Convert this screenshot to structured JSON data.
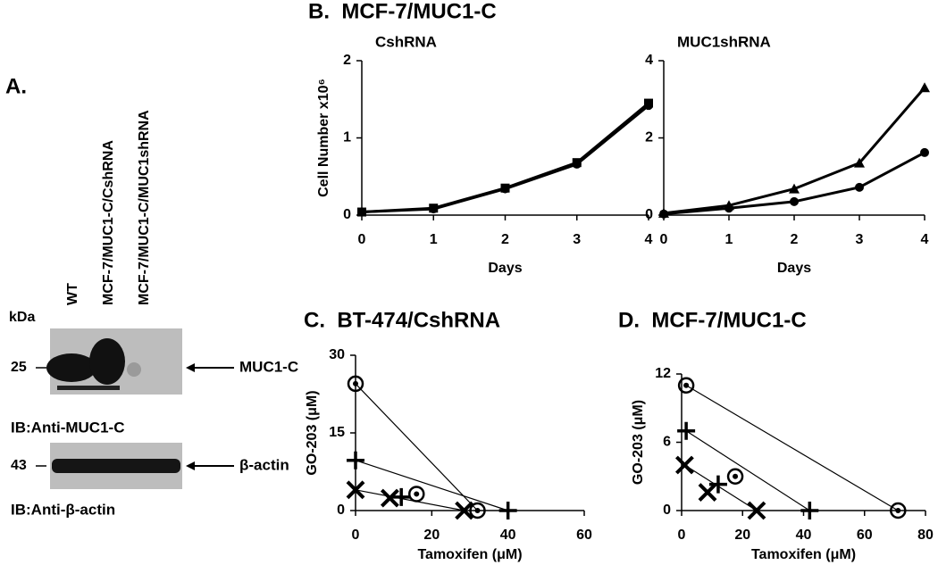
{
  "panel_a": {
    "label": "A.",
    "unit": "kDa",
    "lanes": [
      "WT",
      "MCF-7/MUC1-C/CshRNA",
      "MCF-7/MUC1-C/MUC1shRNA"
    ],
    "blots": [
      {
        "size": "25",
        "band": "MUC1-C",
        "antibody": "IB:Anti-MUC1-C"
      },
      {
        "size": "43",
        "band": "β-actin",
        "antibody": "IB:Anti-β-actin"
      }
    ]
  },
  "panel_b": {
    "title": "B.  MCF-7/MUC1-C"
  },
  "chart_data": [
    {
      "type": "line",
      "title": "CshRNA",
      "x_label": "Days",
      "y_label": "Cell Number x10⁶",
      "x": [
        0,
        1,
        2,
        3,
        4
      ],
      "xlim": [
        0,
        4
      ],
      "xticks": [
        0,
        1,
        2,
        3,
        4
      ],
      "ylim": [
        0,
        2
      ],
      "yticks": [
        0,
        1,
        2
      ],
      "series": [
        {
          "color": "#000000",
          "marker": "square",
          "values": [
            0.04,
            0.09,
            0.35,
            0.68,
            1.45
          ]
        },
        {
          "color": "#000000",
          "marker": "dot",
          "values": [
            0.04,
            0.08,
            0.34,
            0.66,
            1.42
          ]
        }
      ]
    },
    {
      "type": "line",
      "title": "MUC1shRNA",
      "x_label": "Days",
      "x": [
        0,
        1,
        2,
        3,
        4
      ],
      "xlim": [
        0,
        4
      ],
      "xticks": [
        0,
        1,
        2,
        3,
        4
      ],
      "ylim": [
        0,
        4
      ],
      "yticks": [
        0,
        2,
        4
      ],
      "series": [
        {
          "color": "#000000",
          "marker": "triangle",
          "values": [
            0.05,
            0.25,
            0.68,
            1.35,
            3.3
          ]
        },
        {
          "color": "#000000",
          "marker": "dot",
          "values": [
            0.03,
            0.18,
            0.35,
            0.72,
            1.62
          ]
        }
      ]
    },
    {
      "type": "scatter",
      "title": "C.  BT-474/CshRNA",
      "x_label": "Tamoxifen (μM)",
      "y_label": "GO-203 (μM)",
      "xlim": [
        0,
        60
      ],
      "xticks": [
        0,
        20,
        40,
        60
      ],
      "ylim": [
        0,
        30
      ],
      "yticks": [
        0,
        15,
        30
      ],
      "series": [
        {
          "color": "#000000",
          "marker": "ring",
          "x": [
            0,
            32,
            16
          ],
          "values": [
            24.5,
            0,
            3.2
          ]
        },
        {
          "color": "#000000",
          "marker": "plus",
          "x": [
            0,
            40,
            12
          ],
          "values": [
            9.7,
            0,
            2.6
          ]
        },
        {
          "color": "#000000",
          "marker": "cross",
          "x": [
            0,
            28.5,
            9
          ],
          "values": [
            4,
            0,
            2.4
          ]
        }
      ]
    },
    {
      "type": "scatter",
      "title": "D.  MCF-7/MUC1-C",
      "x_label": "Tamoxifen (μM)",
      "y_label": "GO-203 (μM)",
      "xlim": [
        0,
        80
      ],
      "xticks": [
        0,
        20,
        40,
        60,
        80
      ],
      "ylim": [
        0,
        12
      ],
      "yticks": [
        0,
        6,
        12
      ],
      "series": [
        {
          "color": "#000000",
          "marker": "ring",
          "x": [
            1.5,
            71,
            17.6
          ],
          "values": [
            11,
            0,
            3
          ]
        },
        {
          "color": "#000000",
          "marker": "plus",
          "x": [
            1.5,
            42,
            12
          ],
          "values": [
            7,
            0,
            2.3
          ]
        },
        {
          "color": "#000000",
          "marker": "cross",
          "x": [
            1,
            24.6,
            8.5
          ],
          "values": [
            4,
            0,
            1.6
          ]
        }
      ]
    }
  ]
}
